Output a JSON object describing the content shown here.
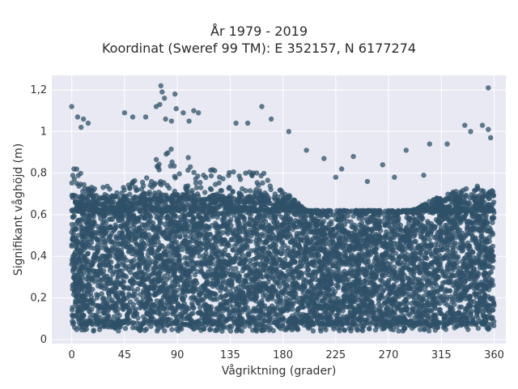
{
  "chart_data": {
    "type": "scatter",
    "title_lines": [
      "År 1979 - 2019",
      "Koordinat (Sweref 99 TM): E 352157, N 6177274"
    ],
    "xlabel": "Vågriktning (grader)",
    "ylabel": "Signifikant våghöjd (m)",
    "xlim": [
      -17,
      370
    ],
    "ylim": [
      -0.02,
      1.27
    ],
    "x_ticks": [
      0,
      45,
      90,
      135,
      180,
      225,
      270,
      315,
      360
    ],
    "x_tick_labels": [
      "0",
      "45",
      "90",
      "135",
      "180",
      "225",
      "270",
      "315",
      "360"
    ],
    "y_ticks": [
      0,
      0.2,
      0.4,
      0.6,
      0.8,
      1.0,
      1.2
    ],
    "y_tick_labels": [
      "0",
      "0,2",
      "0,4",
      "0,6",
      "0,8",
      "1",
      "1,2"
    ],
    "grid": true,
    "marker_color": "#2f5068",
    "plot_background": "#e8e9f2",
    "series": [
      {
        "x_range": [
          0,
          360
        ],
        "y_range": [
          0.05,
          0.7
        ],
        "note": "dense band of points covering all directions"
      }
    ],
    "upper_envelope": [
      [
        0,
        0.84
      ],
      [
        10,
        0.8
      ],
      [
        20,
        0.73
      ],
      [
        30,
        0.74
      ],
      [
        40,
        0.72
      ],
      [
        50,
        0.75
      ],
      [
        60,
        0.8
      ],
      [
        70,
        0.87
      ],
      [
        80,
        0.92
      ],
      [
        90,
        0.92
      ],
      [
        100,
        0.88
      ],
      [
        110,
        0.85
      ],
      [
        120,
        0.82
      ],
      [
        130,
        0.8
      ],
      [
        140,
        0.81
      ],
      [
        150,
        0.82
      ],
      [
        160,
        0.82
      ],
      [
        170,
        0.78
      ],
      [
        180,
        0.72
      ],
      [
        190,
        0.67
      ],
      [
        200,
        0.62
      ],
      [
        210,
        0.58
      ],
      [
        220,
        0.56
      ],
      [
        230,
        0.55
      ],
      [
        240,
        0.55
      ],
      [
        250,
        0.55
      ],
      [
        260,
        0.56
      ],
      [
        270,
        0.58
      ],
      [
        280,
        0.6
      ],
      [
        290,
        0.62
      ],
      [
        300,
        0.65
      ],
      [
        310,
        0.68
      ],
      [
        320,
        0.7
      ],
      [
        330,
        0.72
      ],
      [
        340,
        0.74
      ],
      [
        350,
        0.74
      ],
      [
        360,
        0.72
      ]
    ],
    "outliers": [
      [
        0,
        1.12
      ],
      [
        5,
        1.07
      ],
      [
        8,
        1.02
      ],
      [
        10,
        1.06
      ],
      [
        14,
        1.04
      ],
      [
        45,
        1.09
      ],
      [
        52,
        1.07
      ],
      [
        63,
        1.07
      ],
      [
        72,
        1.12
      ],
      [
        75,
        1.13
      ],
      [
        76,
        1.22
      ],
      [
        77,
        1.19
      ],
      [
        79,
        1.16
      ],
      [
        80,
        1.06
      ],
      [
        85,
        1.05
      ],
      [
        88,
        1.18
      ],
      [
        89,
        1.11
      ],
      [
        95,
        1.09
      ],
      [
        100,
        1.05
      ],
      [
        104,
        1.1
      ],
      [
        108,
        1.09
      ],
      [
        140,
        1.04
      ],
      [
        150,
        1.04
      ],
      [
        162,
        1.12
      ],
      [
        170,
        1.06
      ],
      [
        185,
        1.0
      ],
      [
        285,
        0.91
      ],
      [
        305,
        0.94
      ],
      [
        320,
        0.94
      ],
      [
        335,
        1.03
      ],
      [
        340,
        1.0
      ],
      [
        350,
        1.03
      ],
      [
        355,
        1.01
      ],
      [
        357,
        0.97
      ],
      [
        355,
        1.21
      ],
      [
        200,
        0.91
      ],
      [
        215,
        0.87
      ],
      [
        240,
        0.88
      ],
      [
        252,
        0.76
      ],
      [
        265,
        0.84
      ],
      [
        275,
        0.78
      ],
      [
        300,
        0.79
      ],
      [
        230,
        0.82
      ],
      [
        225,
        0.78
      ]
    ]
  }
}
